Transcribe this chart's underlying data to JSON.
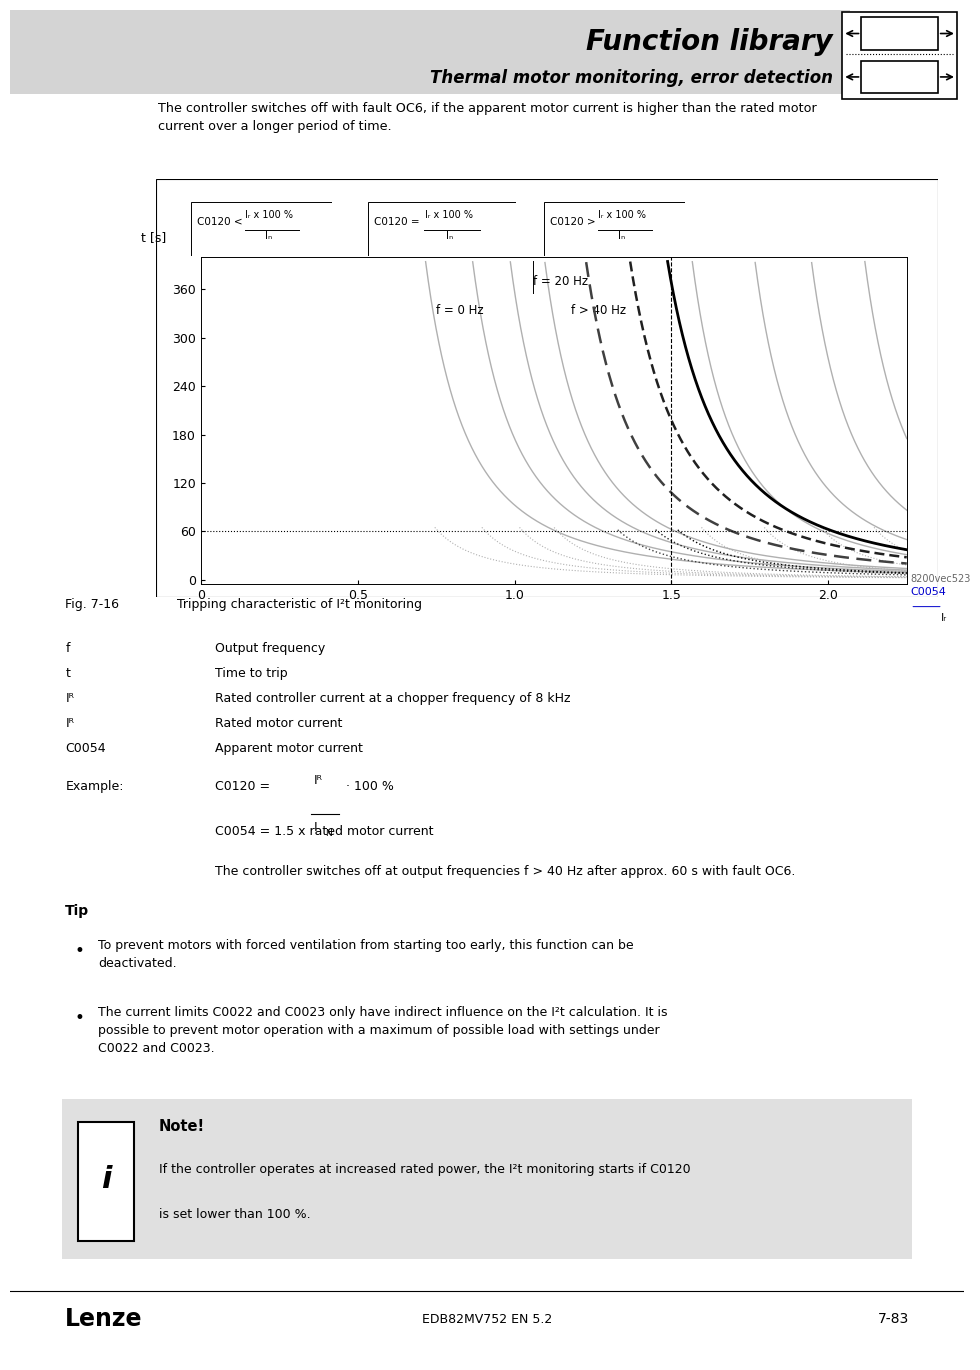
{
  "title1": "Function library",
  "title2": "Thermal motor monitoring, error detection",
  "intro_text": "The controller switches off with fault OC6, if the apparent motor current is higher than the rated motor\ncurrent over a longer period of time.",
  "fig_label": "Fig. 7-16",
  "fig_caption": "Tripping characteristic of I²t monitoring",
  "watermark": "8200vec523",
  "footer_center": "EDB82MV752 EN 5.2",
  "footer_right": "7-83",
  "page_bg": "#ffffff"
}
